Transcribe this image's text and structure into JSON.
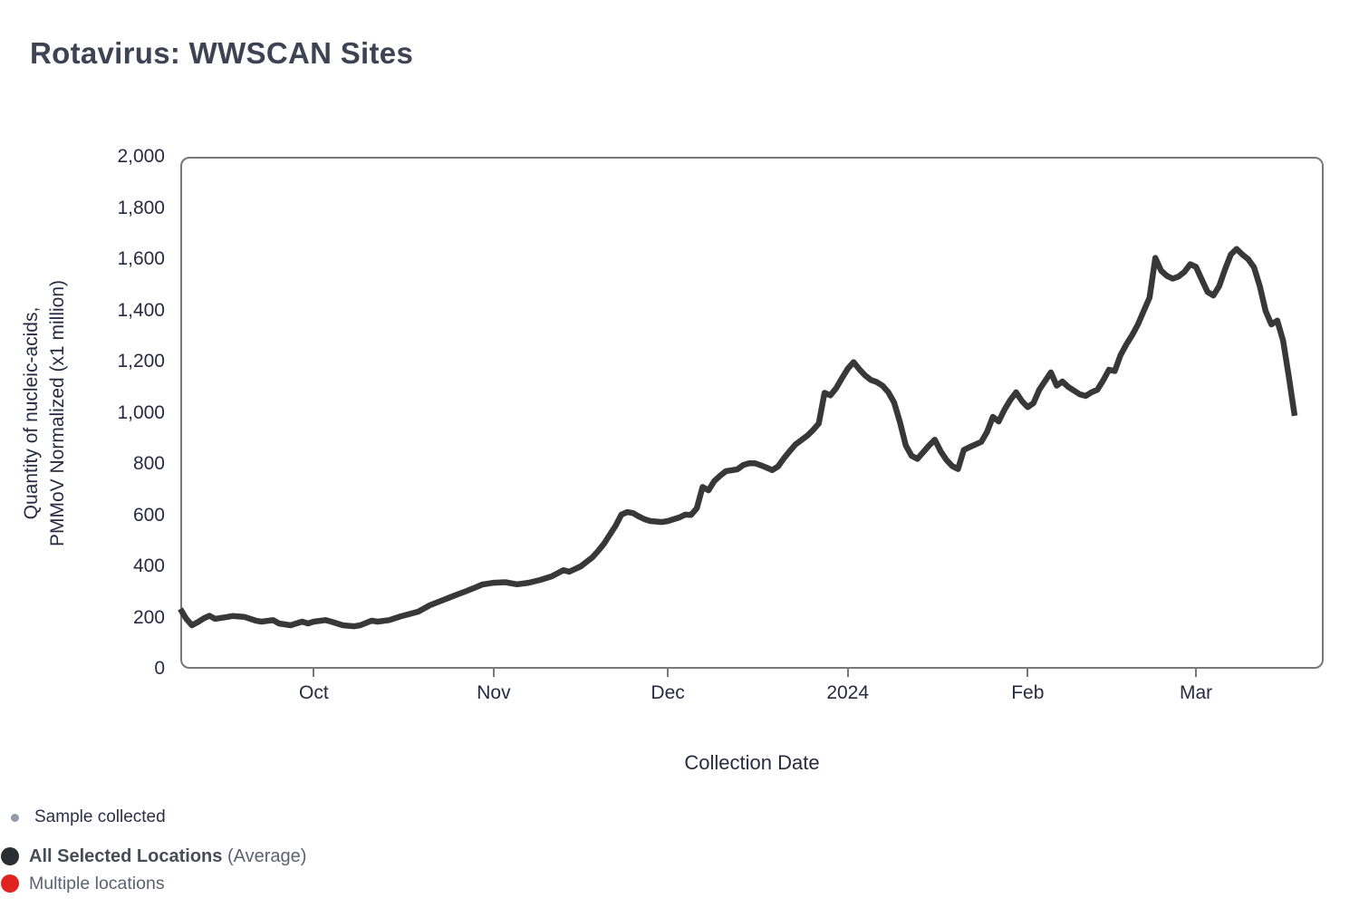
{
  "page": {
    "title": "Rotavirus: WWSCAN Sites"
  },
  "colors": {
    "line": "#383838",
    "plot_border": "#77787c",
    "axis_text": "#262b42",
    "title_text": "#3d4352",
    "legend_sample_dot": "#949ba8",
    "legend_average_dot": "#2a2d32",
    "legend_multiple_dot": "#e02320"
  },
  "legend": {
    "sample": {
      "label": "Sample collected"
    },
    "average": {
      "label_bold": "All Selected Locations",
      "label_suffix": " (Average)"
    },
    "multiple": {
      "label": "Multiple locations"
    }
  },
  "chart_data": {
    "type": "line",
    "title": "Rotavirus: WWSCAN Sites",
    "xlabel": "Collection Date",
    "ylabel": "Quantity of nucleic-acids, PMMoV Normalized (x1 million)",
    "ylabel_lines": [
      "Quantity of nucleic-acids,",
      "PMMoV Normalized (x1 million)"
    ],
    "ylim": [
      0,
      2000
    ],
    "y_tick_step": 200,
    "grid": false,
    "legend_position": "bottom-left",
    "x_domain": [
      "2023-09-08",
      "2024-03-23"
    ],
    "x_ticks": [
      {
        "date": "2023-10-01",
        "label": "Oct"
      },
      {
        "date": "2023-11-01",
        "label": "Nov"
      },
      {
        "date": "2023-12-01",
        "label": "Dec"
      },
      {
        "date": "2024-01-01",
        "label": "2024"
      },
      {
        "date": "2024-02-01",
        "label": "Feb"
      },
      {
        "date": "2024-03-01",
        "label": "Mar"
      }
    ],
    "series": [
      {
        "name": "All Selected Locations (Average)",
        "color": "#383838",
        "points": [
          [
            "2023-09-08",
            234
          ],
          [
            "2023-09-09",
            196
          ],
          [
            "2023-09-10",
            170
          ],
          [
            "2023-09-11",
            182
          ],
          [
            "2023-09-12",
            196
          ],
          [
            "2023-09-13",
            207
          ],
          [
            "2023-09-14",
            195
          ],
          [
            "2023-09-16",
            202
          ],
          [
            "2023-09-17",
            206
          ],
          [
            "2023-09-19",
            203
          ],
          [
            "2023-09-21",
            188
          ],
          [
            "2023-09-22",
            184
          ],
          [
            "2023-09-24",
            190
          ],
          [
            "2023-09-25",
            177
          ],
          [
            "2023-09-27",
            170
          ],
          [
            "2023-09-29",
            184
          ],
          [
            "2023-09-30",
            177
          ],
          [
            "2023-10-01",
            184
          ],
          [
            "2023-10-03",
            190
          ],
          [
            "2023-10-04",
            184
          ],
          [
            "2023-10-06",
            170
          ],
          [
            "2023-10-08",
            166
          ],
          [
            "2023-10-09",
            170
          ],
          [
            "2023-10-11",
            188
          ],
          [
            "2023-10-12",
            184
          ],
          [
            "2023-10-14",
            190
          ],
          [
            "2023-10-16",
            205
          ],
          [
            "2023-10-19",
            223
          ],
          [
            "2023-10-21",
            248
          ],
          [
            "2023-10-23",
            266
          ],
          [
            "2023-10-25",
            284
          ],
          [
            "2023-10-27",
            301
          ],
          [
            "2023-10-29",
            319
          ],
          [
            "2023-10-30",
            329
          ],
          [
            "2023-11-01",
            336
          ],
          [
            "2023-11-03",
            338
          ],
          [
            "2023-11-05",
            330
          ],
          [
            "2023-11-07",
            336
          ],
          [
            "2023-11-09",
            347
          ],
          [
            "2023-11-11",
            361
          ],
          [
            "2023-11-13",
            385
          ],
          [
            "2023-11-14",
            379
          ],
          [
            "2023-11-16",
            400
          ],
          [
            "2023-11-18",
            435
          ],
          [
            "2023-11-19",
            460
          ],
          [
            "2023-11-20",
            488
          ],
          [
            "2023-11-21",
            524
          ],
          [
            "2023-11-22",
            559
          ],
          [
            "2023-11-23",
            602
          ],
          [
            "2023-11-24",
            612
          ],
          [
            "2023-11-25",
            608
          ],
          [
            "2023-11-26",
            595
          ],
          [
            "2023-11-27",
            584
          ],
          [
            "2023-11-28",
            577
          ],
          [
            "2023-11-30",
            573
          ],
          [
            "2023-12-01",
            577
          ],
          [
            "2023-12-03",
            591
          ],
          [
            "2023-12-04",
            602
          ],
          [
            "2023-12-05",
            601
          ],
          [
            "2023-12-06",
            627
          ],
          [
            "2023-12-07",
            710
          ],
          [
            "2023-12-08",
            697
          ],
          [
            "2023-12-09",
            733
          ],
          [
            "2023-12-10",
            754
          ],
          [
            "2023-12-11",
            772
          ],
          [
            "2023-12-13",
            779
          ],
          [
            "2023-12-14",
            796
          ],
          [
            "2023-12-15",
            803
          ],
          [
            "2023-12-16",
            803
          ],
          [
            "2023-12-17",
            795
          ],
          [
            "2023-12-18",
            786
          ],
          [
            "2023-12-19",
            776
          ],
          [
            "2023-12-20",
            790
          ],
          [
            "2023-12-21",
            822
          ],
          [
            "2023-12-22",
            850
          ],
          [
            "2023-12-23",
            876
          ],
          [
            "2023-12-25",
            910
          ],
          [
            "2023-12-26",
            932
          ],
          [
            "2023-12-27",
            958
          ],
          [
            "2023-12-28",
            1078
          ],
          [
            "2023-12-29",
            1068
          ],
          [
            "2023-12-30",
            1096
          ],
          [
            "2023-12-31",
            1135
          ],
          [
            "2024-01-01",
            1172
          ],
          [
            "2024-01-02",
            1198
          ],
          [
            "2024-01-03",
            1170
          ],
          [
            "2024-01-04",
            1146
          ],
          [
            "2024-01-05",
            1128
          ],
          [
            "2024-01-06",
            1120
          ],
          [
            "2024-01-07",
            1106
          ],
          [
            "2024-01-08",
            1080
          ],
          [
            "2024-01-09",
            1040
          ],
          [
            "2024-01-10",
            962
          ],
          [
            "2024-01-11",
            872
          ],
          [
            "2024-01-12",
            832
          ],
          [
            "2024-01-13",
            820
          ],
          [
            "2024-01-14",
            846
          ],
          [
            "2024-01-15",
            872
          ],
          [
            "2024-01-16",
            895
          ],
          [
            "2024-01-17",
            850
          ],
          [
            "2024-01-18",
            816
          ],
          [
            "2024-01-19",
            792
          ],
          [
            "2024-01-20",
            780
          ],
          [
            "2024-01-21",
            855
          ],
          [
            "2024-01-22",
            866
          ],
          [
            "2024-01-24",
            886
          ],
          [
            "2024-01-25",
            925
          ],
          [
            "2024-01-26",
            984
          ],
          [
            "2024-01-27",
            966
          ],
          [
            "2024-01-28",
            1012
          ],
          [
            "2024-01-29",
            1050
          ],
          [
            "2024-01-30",
            1080
          ],
          [
            "2024-01-31",
            1046
          ],
          [
            "2024-02-01",
            1022
          ],
          [
            "2024-02-02",
            1038
          ],
          [
            "2024-02-03",
            1090
          ],
          [
            "2024-02-05",
            1158
          ],
          [
            "2024-02-06",
            1106
          ],
          [
            "2024-02-07",
            1122
          ],
          [
            "2024-02-08",
            1101
          ],
          [
            "2024-02-10",
            1072
          ],
          [
            "2024-02-11",
            1066
          ],
          [
            "2024-02-12",
            1080
          ],
          [
            "2024-02-13",
            1090
          ],
          [
            "2024-02-14",
            1126
          ],
          [
            "2024-02-15",
            1168
          ],
          [
            "2024-02-16",
            1163
          ],
          [
            "2024-02-17",
            1225
          ],
          [
            "2024-02-18",
            1267
          ],
          [
            "2024-02-19",
            1303
          ],
          [
            "2024-02-20",
            1345
          ],
          [
            "2024-02-21",
            1398
          ],
          [
            "2024-02-22",
            1450
          ],
          [
            "2024-02-23",
            1605
          ],
          [
            "2024-02-24",
            1555
          ],
          [
            "2024-02-25",
            1535
          ],
          [
            "2024-02-26",
            1524
          ],
          [
            "2024-02-27",
            1532
          ],
          [
            "2024-02-28",
            1550
          ],
          [
            "2024-02-29",
            1580
          ],
          [
            "2024-03-01",
            1570
          ],
          [
            "2024-03-02",
            1520
          ],
          [
            "2024-03-03",
            1472
          ],
          [
            "2024-03-04",
            1458
          ],
          [
            "2024-03-05",
            1495
          ],
          [
            "2024-03-06",
            1560
          ],
          [
            "2024-03-07",
            1618
          ],
          [
            "2024-03-08",
            1640
          ],
          [
            "2024-03-09",
            1618
          ],
          [
            "2024-03-10",
            1600
          ],
          [
            "2024-03-11",
            1568
          ],
          [
            "2024-03-12",
            1495
          ],
          [
            "2024-03-13",
            1398
          ],
          [
            "2024-03-14",
            1345
          ],
          [
            "2024-03-15",
            1360
          ],
          [
            "2024-03-16",
            1282
          ],
          [
            "2024-03-17",
            1140
          ],
          [
            "2024-03-18",
            988
          ]
        ]
      }
    ]
  }
}
